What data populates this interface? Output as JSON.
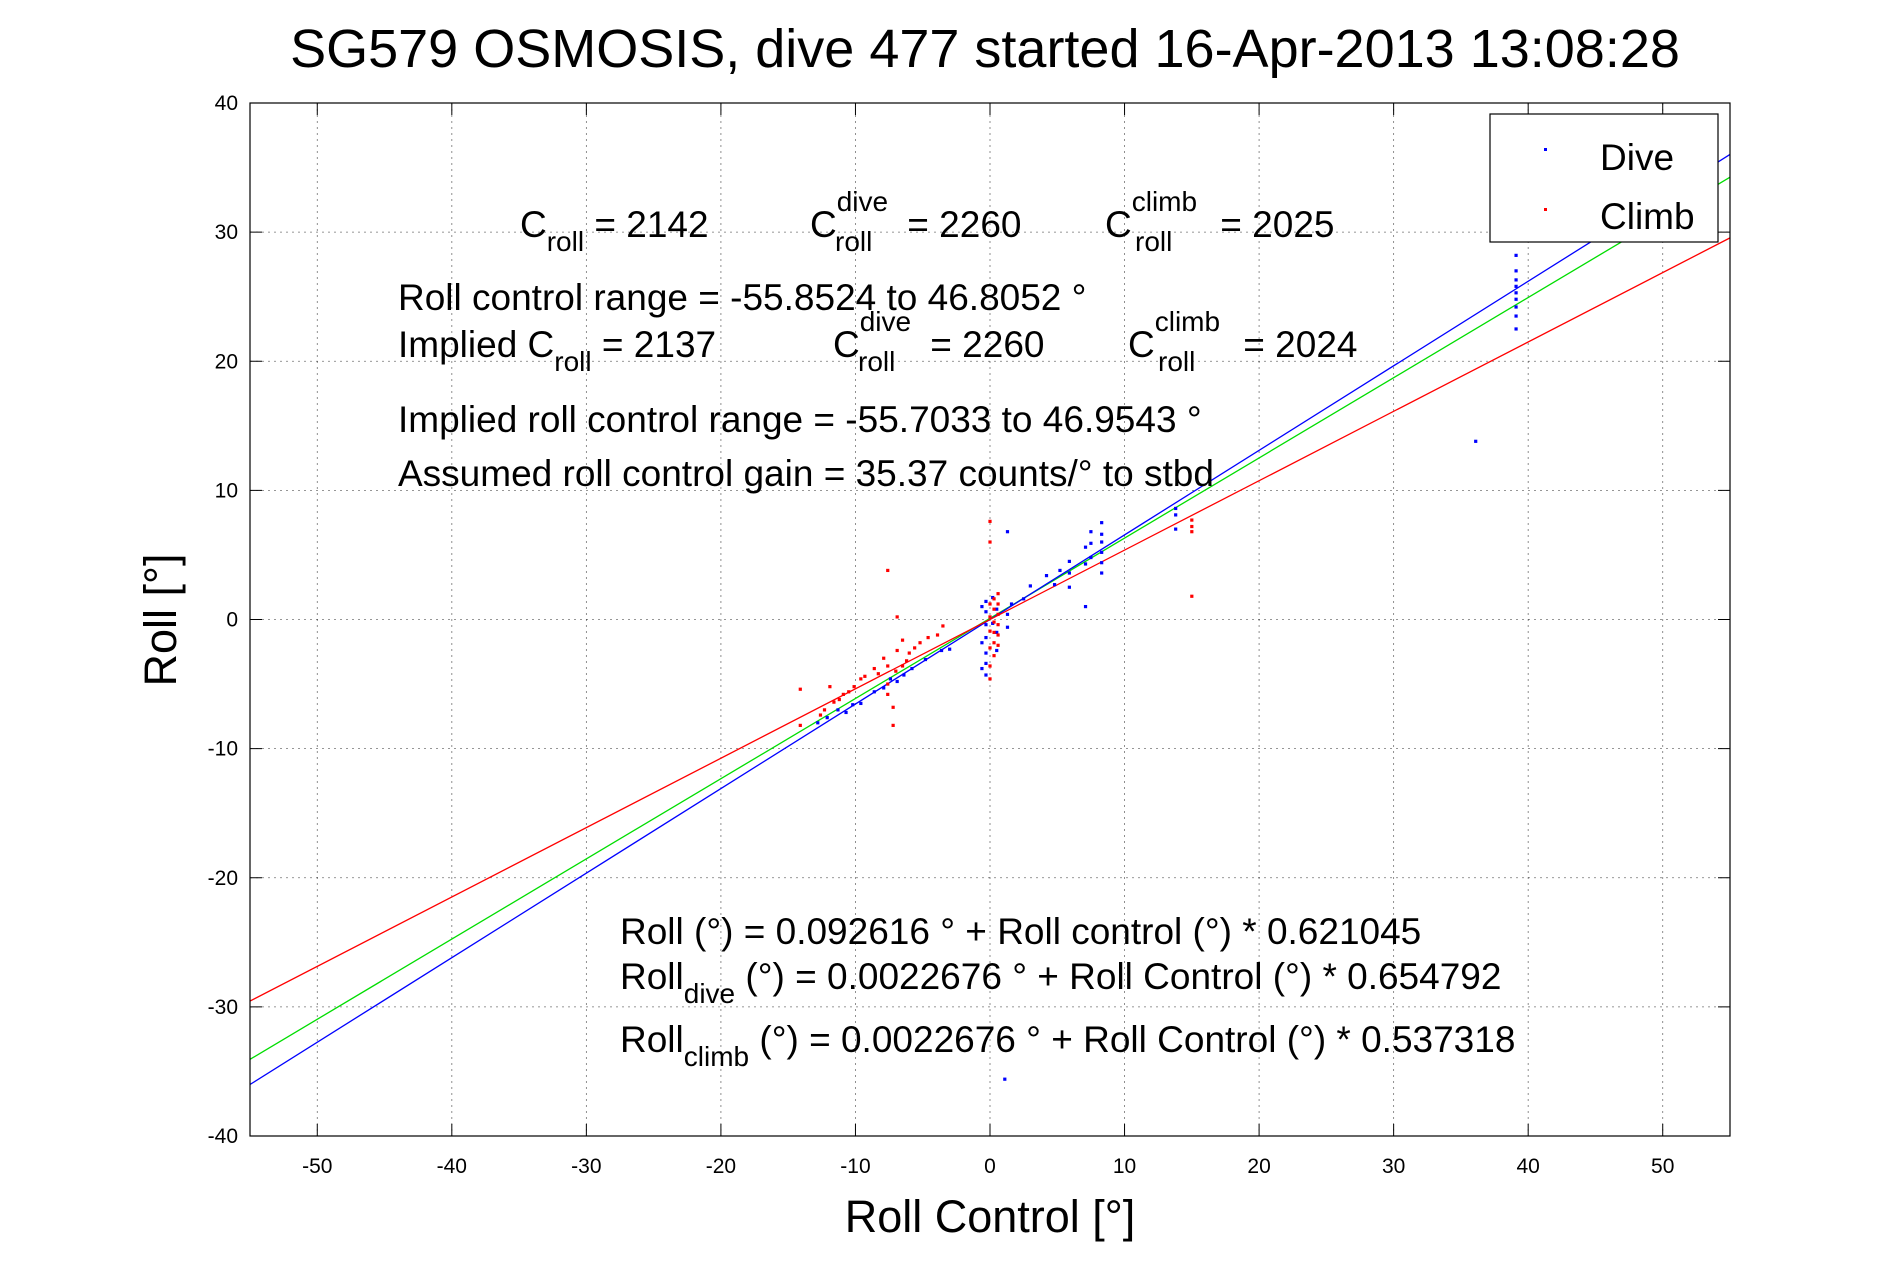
{
  "chart_data": {
    "type": "scatter",
    "title": "SG579 OSMOSIS, dive 477 started 16-Apr-2013 13:08:28",
    "xlabel": "Roll Control [°]",
    "ylabel": "Roll [°]",
    "xlim": [
      -55,
      55
    ],
    "ylim": [
      -40,
      40
    ],
    "xticks": [
      -50,
      -40,
      -30,
      -20,
      -10,
      0,
      10,
      20,
      30,
      40,
      50
    ],
    "yticks": [
      -40,
      -30,
      -20,
      -10,
      0,
      10,
      20,
      30,
      40
    ],
    "grid": true,
    "legend": {
      "placement": "top-right",
      "entries": [
        "Dive",
        "Climb"
      ]
    },
    "series": [
      {
        "name": "Dive",
        "color": "#0000ff",
        "points": [
          [
            39.1,
            28.2
          ],
          [
            39.1,
            27.0
          ],
          [
            39.1,
            26.3
          ],
          [
            39.1,
            25.8
          ],
          [
            39.1,
            25.3
          ],
          [
            39.1,
            24.8
          ],
          [
            39.1,
            24.2
          ],
          [
            39.1,
            23.5
          ],
          [
            39.1,
            22.5
          ],
          [
            36.1,
            13.8
          ],
          [
            13.8,
            8.6
          ],
          [
            13.8,
            8.1
          ],
          [
            13.8,
            7.0
          ],
          [
            8.3,
            7.5
          ],
          [
            8.3,
            6.6
          ],
          [
            8.3,
            6.0
          ],
          [
            8.3,
            5.2
          ],
          [
            8.3,
            4.4
          ],
          [
            8.3,
            3.6
          ],
          [
            7.5,
            6.8
          ],
          [
            7.5,
            5.9
          ],
          [
            7.5,
            4.8
          ],
          [
            7.1,
            5.6
          ],
          [
            7.1,
            4.3
          ],
          [
            7.1,
            1.0
          ],
          [
            5.9,
            4.5
          ],
          [
            5.9,
            3.6
          ],
          [
            5.9,
            2.5
          ],
          [
            5.2,
            3.8
          ],
          [
            4.8,
            2.7
          ],
          [
            4.2,
            3.4
          ],
          [
            3.0,
            2.6
          ],
          [
            2.5,
            1.6
          ],
          [
            1.6,
            1.2
          ],
          [
            1.3,
            0.4
          ],
          [
            1.3,
            6.8
          ],
          [
            1.3,
            -0.6
          ],
          [
            0.5,
            0.8
          ],
          [
            0.5,
            -1.0
          ],
          [
            0.5,
            -2.4
          ],
          [
            0.2,
            1.7
          ],
          [
            0.2,
            -0.3
          ],
          [
            -0.3,
            1.4
          ],
          [
            -0.3,
            0.6
          ],
          [
            -0.3,
            -0.4
          ],
          [
            -0.3,
            -1.4
          ],
          [
            -0.3,
            -2.6
          ],
          [
            -0.3,
            -3.4
          ],
          [
            -0.3,
            -4.3
          ],
          [
            -0.6,
            1.0
          ],
          [
            -0.6,
            -1.8
          ],
          [
            -0.6,
            -3.8
          ],
          [
            -3.0,
            -2.3
          ],
          [
            -3.6,
            -2.4
          ],
          [
            -4.8,
            -3.1
          ],
          [
            -5.8,
            -3.8
          ],
          [
            -6.4,
            -4.3
          ],
          [
            -6.9,
            -4.8
          ],
          [
            -7.4,
            -4.6
          ],
          [
            -7.9,
            -5.3
          ],
          [
            -8.6,
            -5.6
          ],
          [
            -9.6,
            -6.5
          ],
          [
            -10.2,
            -6.6
          ],
          [
            -10.7,
            -7.2
          ],
          [
            -11.3,
            -7.0
          ],
          [
            -12.1,
            -7.6
          ],
          [
            -12.8,
            -8.0
          ],
          [
            1.1,
            -35.6
          ]
        ]
      },
      {
        "name": "Climb",
        "color": "#ff0000",
        "points": [
          [
            15.0,
            7.7
          ],
          [
            15.0,
            7.2
          ],
          [
            15.0,
            6.8
          ],
          [
            15.0,
            1.8
          ],
          [
            0.6,
            2.0
          ],
          [
            0.6,
            1.2
          ],
          [
            0.6,
            0.4
          ],
          [
            0.6,
            -0.4
          ],
          [
            0.6,
            -1.2
          ],
          [
            0.6,
            -2.0
          ],
          [
            0.3,
            1.6
          ],
          [
            0.3,
            0.8
          ],
          [
            0.3,
            -0.2
          ],
          [
            0.3,
            -1.0
          ],
          [
            0.3,
            -1.8
          ],
          [
            0.3,
            -2.8
          ],
          [
            0.0,
            1.2
          ],
          [
            0.0,
            0.2
          ],
          [
            0.0,
            -0.9
          ],
          [
            0.0,
            -2.2
          ],
          [
            0.0,
            -3.6
          ],
          [
            0.0,
            7.6
          ],
          [
            0.0,
            6.0
          ],
          [
            0.0,
            -4.6
          ],
          [
            -3.5,
            -0.5
          ],
          [
            -3.9,
            -1.2
          ],
          [
            -4.6,
            -1.4
          ],
          [
            -5.2,
            -1.8
          ],
          [
            -5.6,
            -2.2
          ],
          [
            -6.0,
            -2.6
          ],
          [
            -6.2,
            -3.2
          ],
          [
            -6.5,
            -1.6
          ],
          [
            -6.5,
            -3.6
          ],
          [
            -6.9,
            0.2
          ],
          [
            -6.9,
            -2.4
          ],
          [
            -7.0,
            -4.0
          ],
          [
            -7.2,
            -6.8
          ],
          [
            -7.2,
            -8.2
          ],
          [
            -7.6,
            -3.6
          ],
          [
            -7.6,
            -5.0
          ],
          [
            -7.6,
            -5.8
          ],
          [
            -7.9,
            -3.0
          ],
          [
            -8.3,
            -4.2
          ],
          [
            -8.6,
            -3.8
          ],
          [
            -9.3,
            -4.4
          ],
          [
            -9.6,
            -4.6
          ],
          [
            -10.1,
            -5.2
          ],
          [
            -10.5,
            -5.6
          ],
          [
            -10.9,
            -5.8
          ],
          [
            -11.2,
            -6.2
          ],
          [
            -11.6,
            -6.4
          ],
          [
            -11.9,
            -5.2
          ],
          [
            -12.3,
            -7.0
          ],
          [
            -12.6,
            -7.4
          ],
          [
            -14.1,
            -5.4
          ],
          [
            -14.1,
            -8.2
          ],
          [
            -7.6,
            3.8
          ]
        ]
      }
    ],
    "fit_lines": [
      {
        "name": "Roll fit",
        "color": "#00dd00",
        "intercept": 0.092616,
        "slope": 0.621045
      },
      {
        "name": "Dive fit",
        "color": "#0000ff",
        "intercept": 0.0022676,
        "slope": 0.654792
      },
      {
        "name": "Climb fit",
        "color": "#ff0000",
        "intercept": 0.0022676,
        "slope": 0.537318
      }
    ],
    "annotations": {
      "croll_label": "C",
      "croll_sub": "roll",
      "croll_val": " = 2142",
      "cdive_label": "C",
      "cdive_sup": "dive",
      "cdive_sub": "roll",
      "cdive_val": " = 2260",
      "cclimb_label": "C",
      "cclimb_sup": "climb",
      "cclimb_sub": "roll",
      "cclimb_val": " = 2025",
      "range": "Roll control range = -55.8524 to 46.8052 °",
      "implied_prefix": "Implied C",
      "implied_sub": "roll",
      "implied_val": " = 2137",
      "implied_dive_label": "C",
      "implied_dive_sup": "dive",
      "implied_dive_sub": "roll",
      "implied_dive_val": " = 2260",
      "implied_climb_label": "C",
      "implied_climb_sup": "climb",
      "implied_climb_sub": "roll",
      "implied_climb_val": " = 2024",
      "implied_range": "Implied roll control range = -55.7033 to 46.9543 °",
      "gain": "Assumed roll control gain = 35.37 counts/° to stbd",
      "eq_roll": "Roll (°) = 0.092616 ° + Roll control (°) * 0.621045",
      "eq_dive_prefix": "Roll",
      "eq_dive_sub": "dive",
      "eq_dive_rest": " (°) = 0.0022676 ° + Roll Control (°) * 0.654792",
      "eq_climb_prefix": "Roll",
      "eq_climb_sub": "climb",
      "eq_climb_rest": " (°) = 0.0022676 ° + Roll Control (°) * 0.537318"
    }
  }
}
